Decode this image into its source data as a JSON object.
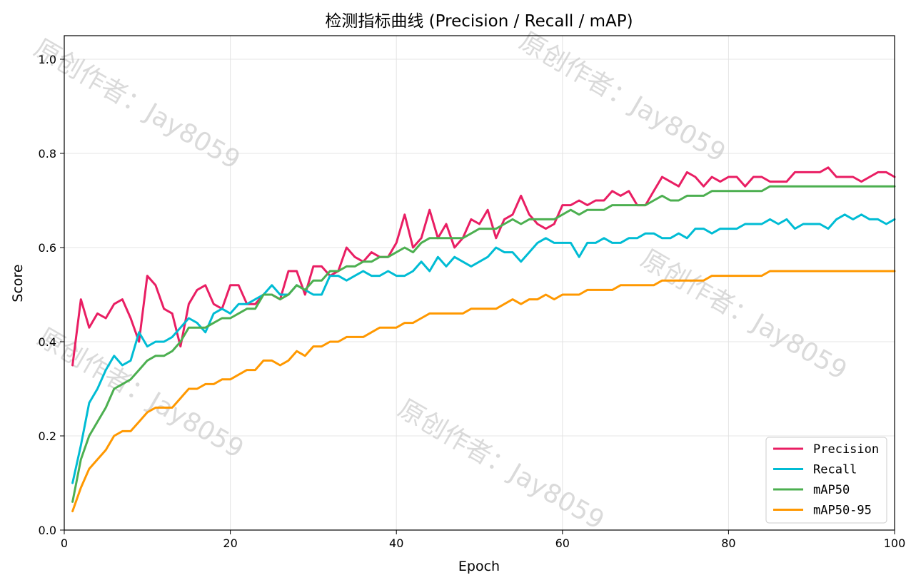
{
  "watermark": "原创作者：Jay8059",
  "chart_data": {
    "type": "line",
    "title": "检测指标曲线 (Precision / Recall / mAP)",
    "xlabel": "Epoch",
    "ylabel": "Score",
    "xlim": [
      0,
      100
    ],
    "ylim": [
      0,
      1.05
    ],
    "xticks": [
      0,
      20,
      40,
      60,
      80,
      100
    ],
    "yticks": [
      0.0,
      0.2,
      0.4,
      0.6,
      0.8,
      1.0
    ],
    "xtick_labels": [
      "0",
      "20",
      "40",
      "60",
      "80",
      "100"
    ],
    "ytick_labels": [
      "0.0",
      "0.2",
      "0.4",
      "0.6",
      "0.8",
      "1.0"
    ],
    "grid": true,
    "legend_position": "bottom-right",
    "x": [
      1,
      2,
      3,
      4,
      5,
      6,
      7,
      8,
      9,
      10,
      11,
      12,
      13,
      14,
      15,
      16,
      17,
      18,
      19,
      20,
      21,
      22,
      23,
      24,
      25,
      26,
      27,
      28,
      29,
      30,
      31,
      32,
      33,
      34,
      35,
      36,
      37,
      38,
      39,
      40,
      41,
      42,
      43,
      44,
      45,
      46,
      47,
      48,
      49,
      50,
      51,
      52,
      53,
      54,
      55,
      56,
      57,
      58,
      59,
      60,
      61,
      62,
      63,
      64,
      65,
      66,
      67,
      68,
      69,
      70,
      71,
      72,
      73,
      74,
      75,
      76,
      77,
      78,
      79,
      80,
      81,
      82,
      83,
      84,
      85,
      86,
      87,
      88,
      89,
      90,
      91,
      92,
      93,
      94,
      95,
      96,
      97,
      98,
      99,
      100
    ],
    "series": [
      {
        "name": "Precision",
        "color": "#e91e63",
        "values": [
          0.35,
          0.49,
          0.43,
          0.46,
          0.45,
          0.48,
          0.49,
          0.45,
          0.4,
          0.54,
          0.52,
          0.47,
          0.46,
          0.39,
          0.48,
          0.51,
          0.52,
          0.48,
          0.47,
          0.52,
          0.52,
          0.48,
          0.48,
          0.5,
          0.5,
          0.49,
          0.55,
          0.55,
          0.5,
          0.56,
          0.56,
          0.54,
          0.55,
          0.6,
          0.58,
          0.57,
          0.59,
          0.58,
          0.58,
          0.61,
          0.67,
          0.6,
          0.62,
          0.68,
          0.62,
          0.65,
          0.6,
          0.62,
          0.66,
          0.65,
          0.68,
          0.62,
          0.66,
          0.67,
          0.71,
          0.67,
          0.65,
          0.64,
          0.65,
          0.69,
          0.69,
          0.7,
          0.69,
          0.7,
          0.7,
          0.72,
          0.71,
          0.72,
          0.69,
          0.69,
          0.72,
          0.75,
          0.74,
          0.73,
          0.76,
          0.75,
          0.73,
          0.75,
          0.74,
          0.75,
          0.75,
          0.73,
          0.75,
          0.75,
          0.74,
          0.74,
          0.74,
          0.76,
          0.76,
          0.76,
          0.76,
          0.77,
          0.75,
          0.75,
          0.75,
          0.74,
          0.75,
          0.76,
          0.76,
          0.75
        ]
      },
      {
        "name": "Recall",
        "color": "#00bcd4",
        "values": [
          0.1,
          0.18,
          0.27,
          0.3,
          0.34,
          0.37,
          0.35,
          0.36,
          0.42,
          0.39,
          0.4,
          0.4,
          0.41,
          0.43,
          0.45,
          0.44,
          0.42,
          0.46,
          0.47,
          0.46,
          0.48,
          0.48,
          0.49,
          0.5,
          0.52,
          0.5,
          0.5,
          0.52,
          0.51,
          0.5,
          0.5,
          0.54,
          0.54,
          0.53,
          0.54,
          0.55,
          0.54,
          0.54,
          0.55,
          0.54,
          0.54,
          0.55,
          0.57,
          0.55,
          0.58,
          0.56,
          0.58,
          0.57,
          0.56,
          0.57,
          0.58,
          0.6,
          0.59,
          0.59,
          0.57,
          0.59,
          0.61,
          0.62,
          0.61,
          0.61,
          0.61,
          0.58,
          0.61,
          0.61,
          0.62,
          0.61,
          0.61,
          0.62,
          0.62,
          0.63,
          0.63,
          0.62,
          0.62,
          0.63,
          0.62,
          0.64,
          0.64,
          0.63,
          0.64,
          0.64,
          0.64,
          0.65,
          0.65,
          0.65,
          0.66,
          0.65,
          0.66,
          0.64,
          0.65,
          0.65,
          0.65,
          0.64,
          0.66,
          0.67,
          0.66,
          0.67,
          0.66,
          0.66,
          0.65,
          0.66
        ]
      },
      {
        "name": "mAP50",
        "color": "#4caf50",
        "values": [
          0.06,
          0.15,
          0.2,
          0.23,
          0.26,
          0.3,
          0.31,
          0.32,
          0.34,
          0.36,
          0.37,
          0.37,
          0.38,
          0.4,
          0.43,
          0.43,
          0.43,
          0.44,
          0.45,
          0.45,
          0.46,
          0.47,
          0.47,
          0.5,
          0.5,
          0.49,
          0.5,
          0.52,
          0.51,
          0.53,
          0.53,
          0.55,
          0.55,
          0.56,
          0.56,
          0.57,
          0.57,
          0.58,
          0.58,
          0.59,
          0.6,
          0.59,
          0.61,
          0.62,
          0.62,
          0.62,
          0.62,
          0.62,
          0.63,
          0.64,
          0.64,
          0.64,
          0.65,
          0.66,
          0.65,
          0.66,
          0.66,
          0.66,
          0.66,
          0.67,
          0.68,
          0.67,
          0.68,
          0.68,
          0.68,
          0.69,
          0.69,
          0.69,
          0.69,
          0.69,
          0.7,
          0.71,
          0.7,
          0.7,
          0.71,
          0.71,
          0.71,
          0.72,
          0.72,
          0.72,
          0.72,
          0.72,
          0.72,
          0.72,
          0.73,
          0.73,
          0.73,
          0.73,
          0.73,
          0.73,
          0.73,
          0.73,
          0.73,
          0.73,
          0.73,
          0.73,
          0.73,
          0.73,
          0.73,
          0.73
        ]
      },
      {
        "name": "mAP50-95",
        "color": "#ff9800",
        "values": [
          0.04,
          0.09,
          0.13,
          0.15,
          0.17,
          0.2,
          0.21,
          0.21,
          0.23,
          0.25,
          0.26,
          0.26,
          0.26,
          0.28,
          0.3,
          0.3,
          0.31,
          0.31,
          0.32,
          0.32,
          0.33,
          0.34,
          0.34,
          0.36,
          0.36,
          0.35,
          0.36,
          0.38,
          0.37,
          0.39,
          0.39,
          0.4,
          0.4,
          0.41,
          0.41,
          0.41,
          0.42,
          0.43,
          0.43,
          0.43,
          0.44,
          0.44,
          0.45,
          0.46,
          0.46,
          0.46,
          0.46,
          0.46,
          0.47,
          0.47,
          0.47,
          0.47,
          0.48,
          0.49,
          0.48,
          0.49,
          0.49,
          0.5,
          0.49,
          0.5,
          0.5,
          0.5,
          0.51,
          0.51,
          0.51,
          0.51,
          0.52,
          0.52,
          0.52,
          0.52,
          0.52,
          0.53,
          0.53,
          0.53,
          0.53,
          0.53,
          0.53,
          0.54,
          0.54,
          0.54,
          0.54,
          0.54,
          0.54,
          0.54,
          0.55,
          0.55,
          0.55,
          0.55,
          0.55,
          0.55,
          0.55,
          0.55,
          0.55,
          0.55,
          0.55,
          0.55,
          0.55,
          0.55,
          0.55,
          0.55
        ]
      }
    ]
  }
}
